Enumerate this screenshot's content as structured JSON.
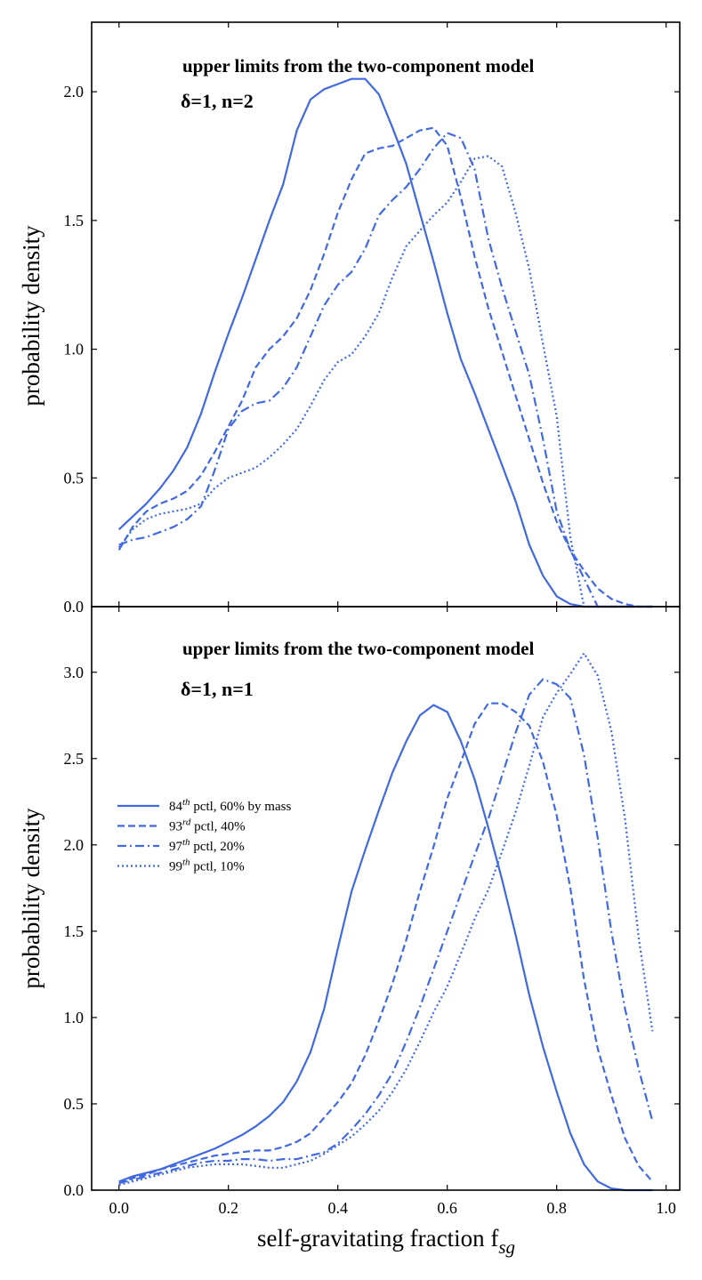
{
  "colors": {
    "series": "#4169E1",
    "axis": "#000000"
  },
  "xlabel_main": "self-gravitating fraction f",
  "xlabel_sub": "sg",
  "legend": [
    {
      "base": "84",
      "sup": "th",
      "rest": " pctl, 60% by mass",
      "style": "solid"
    },
    {
      "base": "93",
      "sup": "rd",
      "rest": " pctl, 40%",
      "style": "dashed"
    },
    {
      "base": "97",
      "sup": "th",
      "rest": " pctl, 20%",
      "style": "dashdot"
    },
    {
      "base": "99",
      "sup": "th",
      "rest": " pctl, 10%",
      "style": "dotted"
    }
  ],
  "chart_data": [
    {
      "type": "line",
      "title": "upper limits from the two-component model",
      "subtitle": "δ=1, n=2",
      "xlabel": "self-gravitating fraction f_sg",
      "ylabel": "probability density",
      "xlim": [
        -0.05,
        1.025
      ],
      "ylim": [
        0,
        2.27
      ],
      "xticks": [
        0.0,
        0.2,
        0.4,
        0.6,
        0.8,
        1.0
      ],
      "yticks": [
        0.0,
        0.5,
        1.0,
        1.5,
        2.0
      ],
      "x": [
        0.0,
        0.025,
        0.05,
        0.075,
        0.1,
        0.125,
        0.15,
        0.175,
        0.2,
        0.225,
        0.25,
        0.275,
        0.3,
        0.325,
        0.35,
        0.375,
        0.4,
        0.425,
        0.45,
        0.475,
        0.5,
        0.525,
        0.55,
        0.575,
        0.6,
        0.625,
        0.65,
        0.675,
        0.7,
        0.725,
        0.75,
        0.775,
        0.8,
        0.825,
        0.85,
        0.875,
        0.9,
        0.925,
        0.95,
        0.975
      ],
      "series": [
        {
          "name": "84th pctl, 60% by mass",
          "style": "solid",
          "values": [
            0.3,
            0.35,
            0.4,
            0.46,
            0.53,
            0.62,
            0.75,
            0.91,
            1.06,
            1.2,
            1.35,
            1.5,
            1.64,
            1.85,
            1.97,
            2.01,
            2.03,
            2.05,
            2.05,
            1.99,
            1.86,
            1.72,
            1.53,
            1.34,
            1.14,
            0.96,
            0.83,
            0.69,
            0.55,
            0.41,
            0.24,
            0.12,
            0.04,
            0.01,
            0.0,
            0.0,
            0.0,
            0.0,
            0.0,
            0.0
          ]
        },
        {
          "name": "93rd pctl, 40%",
          "style": "dashed",
          "values": [
            0.22,
            0.31,
            0.37,
            0.4,
            0.42,
            0.45,
            0.51,
            0.6,
            0.7,
            0.8,
            0.93,
            1.0,
            1.05,
            1.12,
            1.23,
            1.37,
            1.53,
            1.66,
            1.76,
            1.78,
            1.79,
            1.82,
            1.85,
            1.86,
            1.79,
            1.59,
            1.36,
            1.16,
            0.99,
            0.82,
            0.65,
            0.48,
            0.33,
            0.22,
            0.14,
            0.07,
            0.03,
            0.01,
            0.0,
            0.0
          ]
        },
        {
          "name": "97th pctl, 20%",
          "style": "dashdot",
          "values": [
            0.24,
            0.26,
            0.27,
            0.29,
            0.31,
            0.34,
            0.39,
            0.53,
            0.69,
            0.76,
            0.79,
            0.8,
            0.85,
            0.93,
            1.05,
            1.17,
            1.25,
            1.3,
            1.39,
            1.52,
            1.58,
            1.63,
            1.7,
            1.78,
            1.84,
            1.82,
            1.7,
            1.43,
            1.24,
            1.07,
            0.9,
            0.65,
            0.37,
            0.22,
            0.11,
            0.0,
            0.0,
            0.0,
            0.0,
            0.0
          ]
        },
        {
          "name": "99th pctl, 10%",
          "style": "dotted",
          "values": [
            0.23,
            0.3,
            0.34,
            0.36,
            0.37,
            0.38,
            0.4,
            0.46,
            0.5,
            0.52,
            0.54,
            0.58,
            0.63,
            0.69,
            0.78,
            0.88,
            0.95,
            0.98,
            1.05,
            1.14,
            1.28,
            1.4,
            1.46,
            1.52,
            1.57,
            1.65,
            1.74,
            1.75,
            1.71,
            1.53,
            1.31,
            1.02,
            0.74,
            0.27,
            0.0,
            0.0,
            0.0,
            0.0,
            0.0,
            0.0
          ]
        }
      ]
    },
    {
      "type": "line",
      "title": "upper limits from the two-component model",
      "subtitle": "δ=1, n=1",
      "xlabel": "self-gravitating fraction f_sg",
      "ylabel": "probability density",
      "xlim": [
        -0.05,
        1.025
      ],
      "ylim": [
        0,
        3.38
      ],
      "xticks": [
        0.0,
        0.2,
        0.4,
        0.6,
        0.8,
        1.0
      ],
      "yticks": [
        0.0,
        0.5,
        1.0,
        1.5,
        2.0,
        2.5,
        3.0
      ],
      "x": [
        0.0,
        0.025,
        0.05,
        0.075,
        0.1,
        0.125,
        0.15,
        0.175,
        0.2,
        0.225,
        0.25,
        0.275,
        0.3,
        0.325,
        0.35,
        0.375,
        0.4,
        0.425,
        0.45,
        0.475,
        0.5,
        0.525,
        0.55,
        0.575,
        0.6,
        0.625,
        0.65,
        0.675,
        0.7,
        0.725,
        0.75,
        0.775,
        0.8,
        0.825,
        0.85,
        0.875,
        0.9,
        0.925,
        0.95,
        0.975
      ],
      "series": [
        {
          "name": "84th pctl, 60% by mass",
          "style": "solid",
          "values": [
            0.05,
            0.08,
            0.1,
            0.12,
            0.15,
            0.18,
            0.21,
            0.24,
            0.28,
            0.32,
            0.37,
            0.43,
            0.51,
            0.63,
            0.8,
            1.05,
            1.4,
            1.73,
            1.97,
            2.2,
            2.42,
            2.6,
            2.75,
            2.81,
            2.77,
            2.6,
            2.38,
            2.1,
            1.8,
            1.48,
            1.13,
            0.83,
            0.57,
            0.33,
            0.15,
            0.05,
            0.01,
            0.0,
            0.0,
            0.0
          ]
        },
        {
          "name": "93rd pctl, 40%",
          "style": "dashed",
          "values": [
            0.04,
            0.07,
            0.09,
            0.12,
            0.14,
            0.16,
            0.18,
            0.2,
            0.21,
            0.22,
            0.23,
            0.23,
            0.25,
            0.28,
            0.33,
            0.42,
            0.51,
            0.62,
            0.78,
            0.98,
            1.2,
            1.45,
            1.73,
            1.99,
            2.27,
            2.48,
            2.7,
            2.82,
            2.82,
            2.77,
            2.69,
            2.48,
            2.17,
            1.75,
            1.22,
            0.82,
            0.55,
            0.3,
            0.14,
            0.05
          ]
        },
        {
          "name": "97th pctl, 20%",
          "style": "dashdot",
          "values": [
            0.04,
            0.06,
            0.08,
            0.1,
            0.12,
            0.14,
            0.16,
            0.17,
            0.17,
            0.18,
            0.18,
            0.17,
            0.18,
            0.18,
            0.2,
            0.22,
            0.27,
            0.35,
            0.44,
            0.55,
            0.68,
            0.86,
            1.06,
            1.28,
            1.5,
            1.72,
            1.94,
            2.15,
            2.4,
            2.65,
            2.87,
            2.96,
            2.93,
            2.85,
            2.52,
            2.04,
            1.5,
            1.05,
            0.7,
            0.4
          ]
        },
        {
          "name": "99th pctl, 10%",
          "style": "dotted",
          "values": [
            0.03,
            0.05,
            0.07,
            0.09,
            0.11,
            0.13,
            0.14,
            0.15,
            0.15,
            0.15,
            0.14,
            0.13,
            0.13,
            0.15,
            0.17,
            0.21,
            0.26,
            0.31,
            0.38,
            0.46,
            0.57,
            0.7,
            0.86,
            1.03,
            1.18,
            1.37,
            1.57,
            1.74,
            1.96,
            2.19,
            2.46,
            2.74,
            2.88,
            2.99,
            3.11,
            2.98,
            2.66,
            2.15,
            1.46,
            0.92
          ]
        }
      ]
    }
  ]
}
